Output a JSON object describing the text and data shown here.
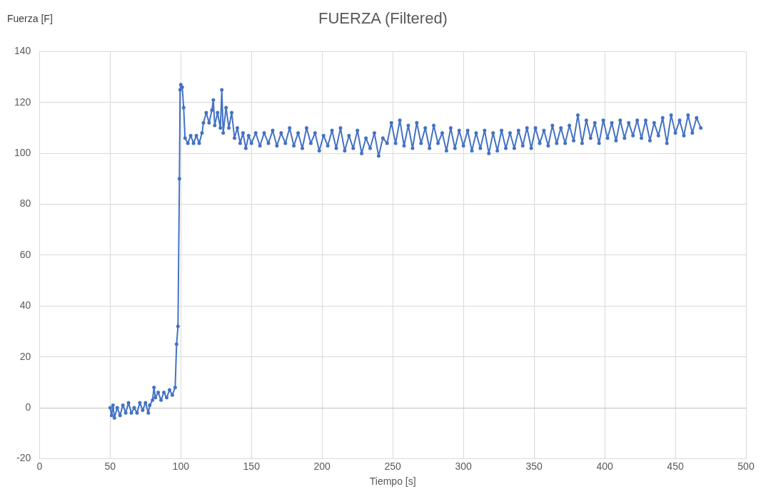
{
  "chart_data": {
    "type": "line",
    "title": "FUERZA (Filtered)",
    "xlabel": "Tiempo [s]",
    "ylabel": "Fuerza  [F]",
    "xlim": [
      0,
      500
    ],
    "xticks": [
      0,
      50,
      100,
      150,
      200,
      250,
      300,
      350,
      400,
      450,
      500
    ],
    "ylim": [
      -20,
      140
    ],
    "yticks": [
      -20,
      0,
      20,
      40,
      60,
      80,
      100,
      120,
      140
    ],
    "grid": true,
    "legend": false,
    "marker": "circle",
    "line_style": "solid",
    "series": [
      {
        "color": "#4472c4",
        "x": [
          50,
          51,
          52,
          53,
          55,
          57,
          59,
          61,
          63,
          65,
          67,
          69,
          71,
          73,
          75,
          77,
          78,
          80,
          81,
          82,
          84,
          86,
          88,
          90,
          92,
          94,
          96,
          97,
          98,
          99,
          99.5,
          100,
          101,
          102,
          103,
          105,
          107,
          109,
          111,
          113,
          115,
          116,
          118,
          120,
          122,
          123,
          124,
          126,
          128,
          129,
          130,
          132,
          134,
          136,
          138,
          140,
          142,
          144,
          146,
          148,
          150,
          153,
          156,
          159,
          162,
          165,
          168,
          171,
          174,
          177,
          180,
          183,
          186,
          189,
          192,
          195,
          198,
          201,
          204,
          207,
          210,
          213,
          216,
          219,
          222,
          225,
          228,
          231,
          234,
          237,
          240,
          243,
          246,
          249,
          252,
          255,
          258,
          261,
          264,
          267,
          270,
          273,
          276,
          279,
          282,
          285,
          288,
          291,
          294,
          297,
          300,
          303,
          306,
          309,
          312,
          315,
          318,
          321,
          324,
          327,
          330,
          333,
          336,
          339,
          342,
          345,
          348,
          351,
          354,
          357,
          360,
          363,
          366,
          369,
          372,
          375,
          378,
          381,
          384,
          387,
          390,
          393,
          396,
          399,
          402,
          405,
          408,
          411,
          414,
          417,
          420,
          423,
          426,
          429,
          432,
          435,
          438,
          441,
          444,
          447,
          450,
          453,
          456,
          459,
          462,
          465,
          468
        ],
        "values": [
          0,
          -3,
          1,
          -4,
          0,
          -3,
          1,
          -2,
          2,
          -2,
          0,
          -2,
          2,
          -1,
          2,
          -2,
          1,
          3,
          8,
          4,
          6,
          3,
          6,
          4,
          7,
          5,
          8,
          25,
          32,
          90,
          125,
          127,
          126,
          118,
          106,
          104,
          107,
          104,
          107,
          104,
          108,
          112,
          116,
          112,
          117,
          121,
          111,
          116,
          110,
          125,
          108,
          118,
          110,
          116,
          106,
          110,
          104,
          108,
          102,
          107,
          104,
          108,
          103,
          108,
          104,
          109,
          103,
          108,
          104,
          110,
          103,
          108,
          102,
          110,
          104,
          108,
          101,
          107,
          103,
          109,
          102,
          110,
          101,
          107,
          102,
          109,
          100,
          106,
          102,
          108,
          99,
          106,
          104,
          112,
          104,
          113,
          103,
          111,
          102,
          112,
          104,
          110,
          102,
          111,
          104,
          108,
          101,
          110,
          102,
          109,
          103,
          109,
          101,
          108,
          102,
          109,
          100,
          108,
          101,
          109,
          102,
          108,
          102,
          109,
          103,
          110,
          102,
          110,
          104,
          109,
          103,
          111,
          104,
          110,
          104,
          111,
          105,
          115,
          104,
          113,
          106,
          112,
          104,
          113,
          106,
          112,
          105,
          113,
          106,
          112,
          107,
          113,
          106,
          113,
          105,
          112,
          107,
          114,
          104,
          115,
          108,
          113,
          107,
          115,
          108,
          114,
          110
        ]
      }
    ]
  }
}
